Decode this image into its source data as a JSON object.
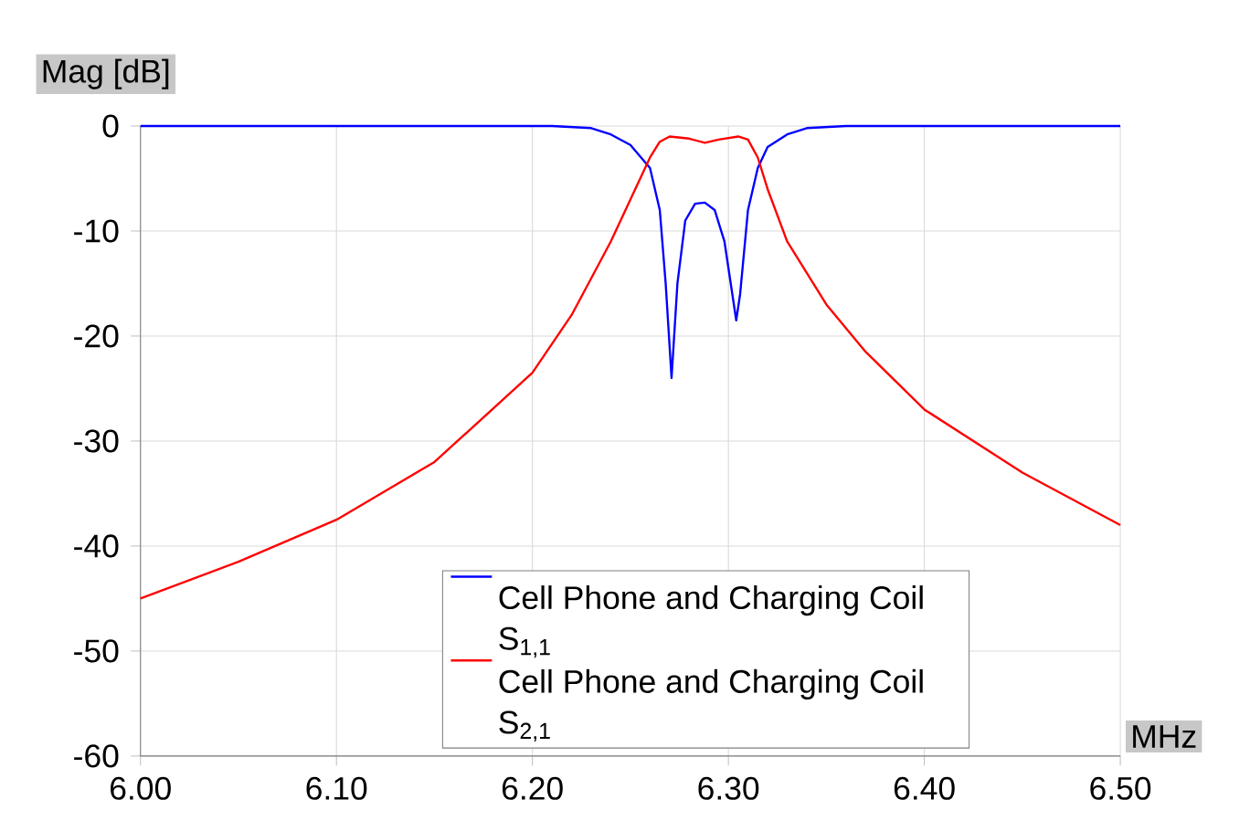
{
  "chart_data": {
    "type": "line",
    "xlabel": "MHz",
    "ylabel": "Mag [dB]",
    "xlim": [
      6.0,
      6.5
    ],
    "ylim": [
      -60,
      0
    ],
    "xticks": [
      {
        "value": 6.0,
        "label": "6.00"
      },
      {
        "value": 6.1,
        "label": "6.10"
      },
      {
        "value": 6.2,
        "label": "6.20"
      },
      {
        "value": 6.3,
        "label": "6.30"
      },
      {
        "value": 6.4,
        "label": "6.40"
      },
      {
        "value": 6.5,
        "label": "6.50"
      }
    ],
    "yticks": [
      -60,
      -50,
      -40,
      -30,
      -20,
      -10,
      0
    ],
    "grid": true,
    "legend": "bottom",
    "line_style": "solid",
    "series": [
      {
        "name": "Cell Phone and Charging Coil S$_{1,1}$",
        "color": "#0000ff",
        "x": [
          6.0,
          6.1,
          6.2,
          6.21,
          6.23,
          6.24,
          6.25,
          6.26,
          6.265,
          6.268,
          6.271,
          6.274,
          6.278,
          6.283,
          6.288,
          6.293,
          6.298,
          6.302,
          6.304,
          6.306,
          6.31,
          6.315,
          6.32,
          6.33,
          6.34,
          6.36,
          6.4,
          6.5
        ],
        "values": [
          0,
          0,
          0,
          0,
          -0.2,
          -0.8,
          -1.8,
          -4,
          -8,
          -15,
          -24,
          -15,
          -9,
          -7.4,
          -7.3,
          -8,
          -11,
          -16,
          -18.5,
          -16,
          -8,
          -4,
          -2,
          -0.8,
          -0.2,
          0,
          0,
          0
        ]
      },
      {
        "name": "Cell Phone and Charging Coil S$_{2,1}$",
        "color": "#ff0000",
        "x": [
          6.0,
          6.05,
          6.1,
          6.15,
          6.2,
          6.22,
          6.24,
          6.25,
          6.26,
          6.265,
          6.27,
          6.28,
          6.288,
          6.295,
          6.305,
          6.31,
          6.315,
          6.32,
          6.33,
          6.35,
          6.37,
          6.4,
          6.45,
          6.5
        ],
        "values": [
          -45,
          -41.5,
          -37.5,
          -32,
          -23.5,
          -18,
          -11,
          -7,
          -3,
          -1.5,
          -1,
          -1.2,
          -1.6,
          -1.3,
          -1,
          -1.3,
          -3,
          -6,
          -11,
          -17,
          -21.5,
          -27,
          -33,
          -38
        ]
      }
    ]
  }
}
